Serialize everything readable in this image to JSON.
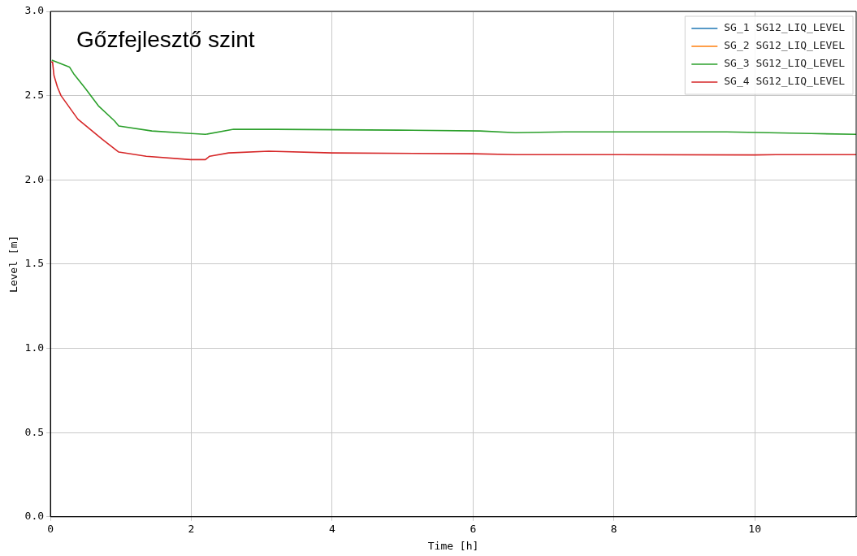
{
  "chart_data": {
    "type": "line",
    "title": "Gőzfejlesztő szint",
    "xlabel": "Time [h]",
    "ylabel": "Level [m]",
    "xlim": [
      0,
      11.44
    ],
    "xticks": [
      0,
      2,
      4,
      6,
      8,
      10
    ],
    "ylim": [
      0,
      3
    ],
    "yticks": [
      {
        "value": 0,
        "label": "0.0"
      },
      0.5,
      {
        "value": 1,
        "label": "1.0"
      },
      1.5,
      {
        "value": 2,
        "label": "2.0"
      },
      2.5,
      {
        "value": 3,
        "label": "3.0"
      }
    ],
    "grid": true,
    "legend": "top right",
    "marker": "none",
    "line_style": "solid",
    "series": [
      {
        "name": "SG_1 SG12_LIQ_LEVEL",
        "color": "#1f77b4"
      },
      {
        "name": "SG_2 SG12_LIQ_LEVEL",
        "color": "#ff7f0e"
      },
      {
        "name": "SG_3 SG12_LIQ_LEVEL",
        "color": "#2ca02c",
        "x": [
          0.02,
          0.27,
          0.33,
          0.5,
          0.68,
          0.91,
          0.97,
          1.44,
          2.0,
          2.2,
          2.6,
          3.2,
          4.95,
          6.1,
          6.6,
          7.3,
          9.6,
          10.8,
          11.44
        ],
        "values": [
          2.71,
          2.67,
          2.63,
          2.54,
          2.44,
          2.35,
          2.32,
          2.29,
          2.275,
          2.27,
          2.3,
          2.3,
          2.295,
          2.29,
          2.28,
          2.285,
          2.285,
          2.275,
          2.27
        ]
      },
      {
        "name": "SG_4 SG12_LIQ_LEVEL",
        "color": "#d62728",
        "x": [
          0,
          0.03,
          0.05,
          0.1,
          0.15,
          0.39,
          0.74,
          0.97,
          1.36,
          1.99,
          2.2,
          2.26,
          2.53,
          3.1,
          4,
          6,
          6.6,
          8,
          10,
          10.3,
          11.44
        ],
        "values": [
          2.7,
          2.7,
          2.62,
          2.55,
          2.5,
          2.36,
          2.24,
          2.165,
          2.14,
          2.12,
          2.12,
          2.14,
          2.16,
          2.17,
          2.16,
          2.155,
          2.15,
          2.15,
          2.148,
          2.15,
          2.15
        ]
      }
    ]
  }
}
